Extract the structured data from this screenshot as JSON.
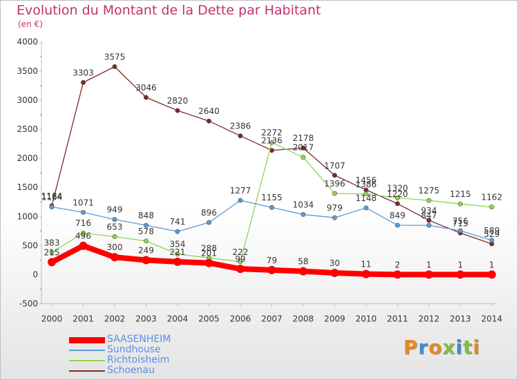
{
  "chart_data": {
    "type": "line",
    "title": "Evolution du Montant de la Dette par Habitant",
    "unit": "(en €)",
    "x": [
      "2000",
      "2001",
      "2002",
      "2003",
      "2004",
      "2005",
      "2006",
      "2007",
      "2008",
      "2009",
      "2010",
      "2011",
      "2012",
      "2013",
      "2014"
    ],
    "yticks": [
      "4000",
      "3500",
      "3000",
      "2500",
      "2000",
      "1500",
      "1000",
      "500",
      "0",
      "-500"
    ],
    "ylim": [
      -500,
      4000
    ],
    "grid": false,
    "legend_position": "bottom-left",
    "series": [
      {
        "name": "SAASENHEIM",
        "color": "#ff0000",
        "width": 8,
        "values": [
          215,
          496,
          300,
          249,
          221,
          201,
          99,
          79,
          58,
          30,
          11,
          2,
          1,
          1,
          1
        ],
        "labels": [
          "215",
          "496",
          "300",
          "249",
          "221",
          "201",
          "99",
          "79",
          "58",
          "30",
          "11",
          "2",
          "1",
          "1",
          "1"
        ]
      },
      {
        "name": "Sundhouse",
        "color": "#5b9bd5",
        "width": 1.3,
        "values": [
          1164,
          1071,
          949,
          848,
          741,
          896,
          1277,
          1155,
          1034,
          979,
          1148,
          849,
          847,
          756,
          589
        ],
        "labels": [
          "1164",
          "1071",
          "949",
          "848",
          "741",
          "896",
          "1277",
          "1155",
          "1034",
          "979",
          "1148",
          "849",
          "847",
          "756",
          "589"
        ]
      },
      {
        "name": "Richtolsheim",
        "color": "#8fd44f",
        "width": 1.3,
        "values": [
          383,
          716,
          653,
          578,
          354,
          288,
          222,
          2272,
          2017,
          1396,
          1386,
          1320,
          1275,
          1215,
          1162
        ],
        "labels": [
          "383",
          "716",
          "653",
          "578",
          "354",
          "288",
          "222",
          "2272",
          "2017",
          "1396",
          "1386",
          "1320",
          "1275",
          "1215",
          "1162"
        ]
      },
      {
        "name": "Schoenau",
        "color": "#7b2929",
        "width": 1.3,
        "values": [
          1184,
          3303,
          3575,
          3046,
          2820,
          2640,
          2386,
          2136,
          2178,
          1707,
          1456,
          1220,
          934,
          715,
          529
        ],
        "labels": [
          "1184",
          "3303",
          "3575",
          "3046",
          "2820",
          "2640",
          "2386",
          "2136",
          "2178",
          "1707",
          "1456",
          "1220",
          "934",
          "715",
          "529"
        ]
      }
    ]
  },
  "logo": {
    "text": "Proxiti",
    "colors": [
      "#e8891c",
      "#3a8ed6",
      "#e8891c",
      "#7cc242",
      "#3a8ed6",
      "#7cc242",
      "#e8891c"
    ]
  }
}
